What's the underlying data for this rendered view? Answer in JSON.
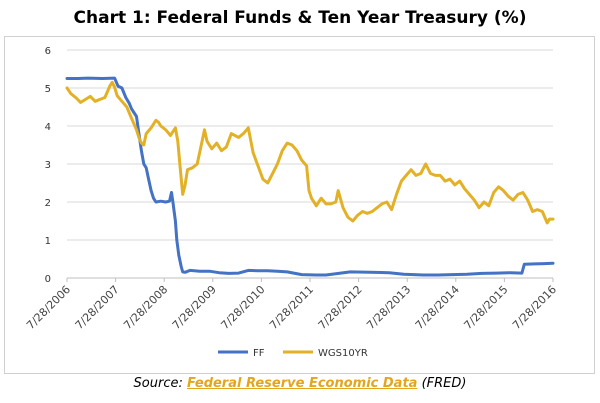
{
  "chart_data": {
    "type": "line",
    "title": "Chart 1: Federal Funds & Ten Year Treasury (%)",
    "xlabel": "",
    "ylabel": "",
    "ylim": [
      0,
      6
    ],
    "yticks": [
      0,
      1,
      2,
      3,
      4,
      5,
      6
    ],
    "xlim": [
      2006.57,
      2016.57
    ],
    "x_tick_labels": [
      "7/28/2006",
      "7/28/2007",
      "7/28/2008",
      "7/28/2009",
      "7/28/2010",
      "7/28/2011",
      "7/28/2012",
      "7/28/2013",
      "7/28/2014",
      "7/28/2015",
      "7/28/2016"
    ],
    "x_tick_values": [
      2006.57,
      2007.57,
      2008.57,
      2009.57,
      2010.57,
      2011.57,
      2012.57,
      2013.57,
      2014.57,
      2015.57,
      2016.57
    ],
    "legend_position": "bottom",
    "series": [
      {
        "name": "FF",
        "color": "#4472c4",
        "points": [
          [
            2006.57,
            5.25
          ],
          [
            2006.8,
            5.25
          ],
          [
            2007.0,
            5.26
          ],
          [
            2007.3,
            5.25
          ],
          [
            2007.55,
            5.26
          ],
          [
            2007.62,
            5.05
          ],
          [
            2007.7,
            5.0
          ],
          [
            2007.78,
            4.75
          ],
          [
            2007.85,
            4.6
          ],
          [
            2007.9,
            4.45
          ],
          [
            2008.0,
            4.25
          ],
          [
            2008.05,
            3.8
          ],
          [
            2008.1,
            3.35
          ],
          [
            2008.15,
            3.0
          ],
          [
            2008.2,
            2.9
          ],
          [
            2008.25,
            2.6
          ],
          [
            2008.3,
            2.3
          ],
          [
            2008.35,
            2.1
          ],
          [
            2008.4,
            2.0
          ],
          [
            2008.5,
            2.02
          ],
          [
            2008.6,
            2.0
          ],
          [
            2008.68,
            2.02
          ],
          [
            2008.72,
            2.25
          ],
          [
            2008.75,
            2.0
          ],
          [
            2008.8,
            1.5
          ],
          [
            2008.83,
            1.0
          ],
          [
            2008.87,
            0.6
          ],
          [
            2008.92,
            0.3
          ],
          [
            2008.95,
            0.16
          ],
          [
            2009.0,
            0.15
          ],
          [
            2009.1,
            0.2
          ],
          [
            2009.3,
            0.18
          ],
          [
            2009.5,
            0.18
          ],
          [
            2009.7,
            0.14
          ],
          [
            2009.9,
            0.12
          ],
          [
            2010.1,
            0.13
          ],
          [
            2010.3,
            0.2
          ],
          [
            2010.5,
            0.19
          ],
          [
            2010.7,
            0.19
          ],
          [
            2010.9,
            0.18
          ],
          [
            2011.1,
            0.16
          ],
          [
            2011.4,
            0.09
          ],
          [
            2011.7,
            0.08
          ],
          [
            2011.9,
            0.08
          ],
          [
            2012.1,
            0.11
          ],
          [
            2012.4,
            0.16
          ],
          [
            2012.8,
            0.15
          ],
          [
            2013.2,
            0.14
          ],
          [
            2013.5,
            0.1
          ],
          [
            2013.9,
            0.08
          ],
          [
            2014.2,
            0.08
          ],
          [
            2014.5,
            0.09
          ],
          [
            2014.8,
            0.1
          ],
          [
            2015.1,
            0.12
          ],
          [
            2015.4,
            0.13
          ],
          [
            2015.7,
            0.14
          ],
          [
            2015.93,
            0.13
          ],
          [
            2015.98,
            0.36
          ],
          [
            2016.2,
            0.37
          ],
          [
            2016.4,
            0.38
          ],
          [
            2016.57,
            0.39
          ]
        ]
      },
      {
        "name": "WGS10YR",
        "color": "#e3b126",
        "points": [
          [
            2006.57,
            5.0
          ],
          [
            2006.65,
            4.85
          ],
          [
            2006.75,
            4.75
          ],
          [
            2006.85,
            4.62
          ],
          [
            2006.95,
            4.7
          ],
          [
            2007.05,
            4.78
          ],
          [
            2007.15,
            4.65
          ],
          [
            2007.25,
            4.7
          ],
          [
            2007.35,
            4.75
          ],
          [
            2007.45,
            5.05
          ],
          [
            2007.5,
            5.15
          ],
          [
            2007.55,
            5.02
          ],
          [
            2007.6,
            4.8
          ],
          [
            2007.7,
            4.65
          ],
          [
            2007.8,
            4.5
          ],
          [
            2007.9,
            4.2
          ],
          [
            2008.0,
            3.9
          ],
          [
            2008.05,
            3.7
          ],
          [
            2008.1,
            3.55
          ],
          [
            2008.15,
            3.5
          ],
          [
            2008.2,
            3.8
          ],
          [
            2008.3,
            3.95
          ],
          [
            2008.4,
            4.15
          ],
          [
            2008.45,
            4.1
          ],
          [
            2008.5,
            4.0
          ],
          [
            2008.6,
            3.9
          ],
          [
            2008.7,
            3.75
          ],
          [
            2008.75,
            3.85
          ],
          [
            2008.8,
            3.95
          ],
          [
            2008.85,
            3.6
          ],
          [
            2008.9,
            2.9
          ],
          [
            2008.95,
            2.2
          ],
          [
            2009.0,
            2.45
          ],
          [
            2009.05,
            2.85
          ],
          [
            2009.15,
            2.9
          ],
          [
            2009.25,
            3.0
          ],
          [
            2009.35,
            3.6
          ],
          [
            2009.4,
            3.9
          ],
          [
            2009.45,
            3.6
          ],
          [
            2009.55,
            3.4
          ],
          [
            2009.65,
            3.55
          ],
          [
            2009.75,
            3.35
          ],
          [
            2009.85,
            3.45
          ],
          [
            2009.95,
            3.8
          ],
          [
            2010.1,
            3.7
          ],
          [
            2010.2,
            3.8
          ],
          [
            2010.3,
            3.95
          ],
          [
            2010.4,
            3.3
          ],
          [
            2010.5,
            2.95
          ],
          [
            2010.6,
            2.6
          ],
          [
            2010.7,
            2.5
          ],
          [
            2010.8,
            2.75
          ],
          [
            2010.9,
            3.0
          ],
          [
            2011.0,
            3.35
          ],
          [
            2011.1,
            3.55
          ],
          [
            2011.2,
            3.5
          ],
          [
            2011.3,
            3.35
          ],
          [
            2011.4,
            3.1
          ],
          [
            2011.5,
            2.95
          ],
          [
            2011.55,
            2.3
          ],
          [
            2011.6,
            2.1
          ],
          [
            2011.7,
            1.9
          ],
          [
            2011.8,
            2.1
          ],
          [
            2011.9,
            1.95
          ],
          [
            2012.0,
            1.95
          ],
          [
            2012.1,
            2.0
          ],
          [
            2012.15,
            2.3
          ],
          [
            2012.25,
            1.85
          ],
          [
            2012.35,
            1.6
          ],
          [
            2012.45,
            1.5
          ],
          [
            2012.55,
            1.65
          ],
          [
            2012.65,
            1.75
          ],
          [
            2012.75,
            1.7
          ],
          [
            2012.85,
            1.75
          ],
          [
            2012.95,
            1.85
          ],
          [
            2013.05,
            1.95
          ],
          [
            2013.15,
            2.0
          ],
          [
            2013.25,
            1.8
          ],
          [
            2013.35,
            2.2
          ],
          [
            2013.45,
            2.55
          ],
          [
            2013.55,
            2.7
          ],
          [
            2013.65,
            2.85
          ],
          [
            2013.75,
            2.7
          ],
          [
            2013.85,
            2.75
          ],
          [
            2013.95,
            3.0
          ],
          [
            2014.05,
            2.75
          ],
          [
            2014.15,
            2.7
          ],
          [
            2014.25,
            2.7
          ],
          [
            2014.35,
            2.55
          ],
          [
            2014.45,
            2.6
          ],
          [
            2014.55,
            2.45
          ],
          [
            2014.65,
            2.55
          ],
          [
            2014.75,
            2.35
          ],
          [
            2014.85,
            2.2
          ],
          [
            2014.95,
            2.05
          ],
          [
            2015.05,
            1.85
          ],
          [
            2015.15,
            2.0
          ],
          [
            2015.25,
            1.9
          ],
          [
            2015.35,
            2.25
          ],
          [
            2015.45,
            2.4
          ],
          [
            2015.55,
            2.3
          ],
          [
            2015.65,
            2.15
          ],
          [
            2015.75,
            2.05
          ],
          [
            2015.85,
            2.2
          ],
          [
            2015.95,
            2.25
          ],
          [
            2016.05,
            2.05
          ],
          [
            2016.15,
            1.75
          ],
          [
            2016.25,
            1.8
          ],
          [
            2016.35,
            1.75
          ],
          [
            2016.45,
            1.45
          ],
          [
            2016.5,
            1.55
          ],
          [
            2016.57,
            1.55
          ]
        ]
      }
    ]
  },
  "source": {
    "prefix": "Source: ",
    "link_text": "Federal Reserve Economic Data",
    "suffix": " (FRED)"
  }
}
